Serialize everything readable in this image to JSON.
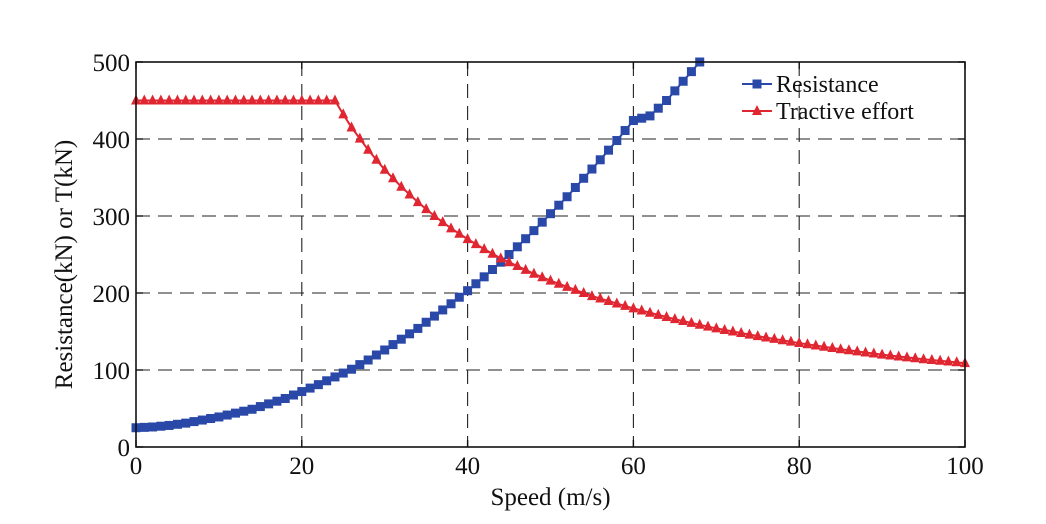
{
  "chart_data": {
    "type": "line",
    "title": "",
    "xlabel": "Speed (m/s)",
    "ylabel": "Resistance(kN) or T(kN)",
    "xlim": [
      0,
      100
    ],
    "ylim": [
      0,
      500
    ],
    "xticks": [
      0,
      20,
      40,
      60,
      80,
      100
    ],
    "yticks": [
      0,
      100,
      200,
      300,
      400,
      500
    ],
    "grid": true,
    "grid_style": "dashed",
    "legend_position": "top-right",
    "series": [
      {
        "name": "Resistance",
        "color": "#2a48a8",
        "marker": "square",
        "x": [
          0,
          2,
          4,
          6,
          8,
          10,
          12,
          14,
          16,
          18,
          20,
          22,
          24,
          26,
          28,
          30,
          32,
          34,
          36,
          38,
          40,
          42,
          44,
          46,
          48,
          50,
          52,
          54,
          56,
          58,
          60,
          62,
          64,
          66,
          68
        ],
        "y": [
          25,
          26,
          28,
          31,
          35,
          39,
          44,
          49,
          56,
          63,
          72,
          81,
          91,
          101,
          113,
          126,
          140,
          154,
          170,
          186,
          203,
          221,
          240,
          260,
          281,
          303,
          325,
          349,
          373,
          398,
          424,
          430,
          450,
          475,
          500
        ]
      },
      {
        "name": "Tractive effort",
        "color": "#e02630",
        "marker": "triangle",
        "x": [
          0,
          5,
          10,
          15,
          20,
          24,
          25,
          26,
          28,
          30,
          32,
          34,
          36,
          38,
          40,
          42,
          44,
          46,
          48,
          50,
          55,
          60,
          65,
          70,
          75,
          80,
          85,
          90,
          95,
          100
        ],
        "y": [
          450,
          450,
          450,
          450,
          450,
          450,
          432,
          415,
          386,
          360,
          338,
          318,
          300,
          284,
          270,
          257,
          245,
          235,
          225,
          216,
          196,
          180,
          166,
          154,
          144,
          135,
          127,
          120,
          114,
          109
        ]
      }
    ]
  }
}
